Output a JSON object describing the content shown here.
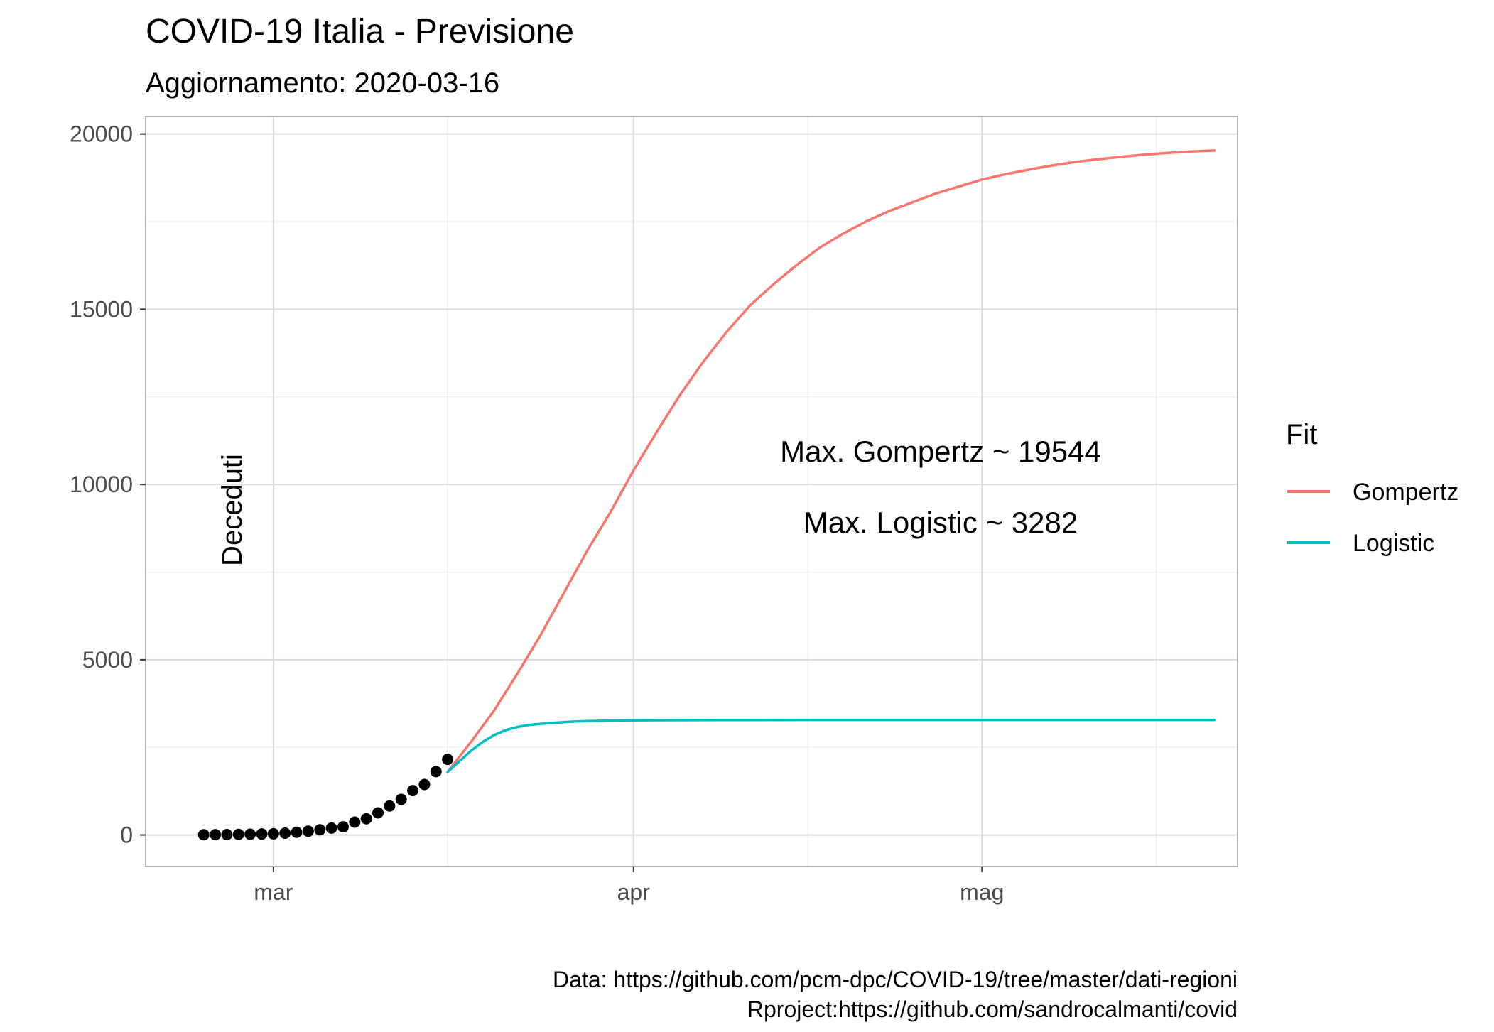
{
  "chart_data": {
    "type": "line",
    "title": "COVID-19 Italia - Previsione",
    "subtitle": "Aggiornamento: 2020-03-16",
    "ylabel": "Deceduti",
    "xlabel": "",
    "ylim": [
      -900,
      20500
    ],
    "xlim": [
      "2020-02-19",
      "2020-05-23"
    ],
    "x_ticks": [
      {
        "date": "2020-03-01",
        "label": "mar"
      },
      {
        "date": "2020-04-01",
        "label": "apr"
      },
      {
        "date": "2020-05-01",
        "label": "mag"
      }
    ],
    "x_minor_ticks": [
      "2020-03-16",
      "2020-04-16",
      "2020-05-16"
    ],
    "y_ticks": [
      0,
      5000,
      10000,
      15000,
      20000
    ],
    "y_minor_ticks": [
      2500,
      7500,
      12500,
      17500
    ],
    "grid": true,
    "legend": {
      "title": "Fit",
      "placement": "right"
    },
    "annotations": [
      "Max. Gompertz ~ 19544",
      "Max. Logistic ~ 3282"
    ],
    "caption": [
      "Data: https://github.com/pcm-dpc/COVID-19/tree/master/dati-regioni",
      "Rproject:https://github.com/sandrocalmanti/covid"
    ],
    "observed": {
      "x": [
        "2020-02-24",
        "2020-02-25",
        "2020-02-26",
        "2020-02-27",
        "2020-02-28",
        "2020-02-29",
        "2020-03-01",
        "2020-03-02",
        "2020-03-03",
        "2020-03-04",
        "2020-03-05",
        "2020-03-06",
        "2020-03-07",
        "2020-03-08",
        "2020-03-09",
        "2020-03-10",
        "2020-03-11",
        "2020-03-12",
        "2020-03-13",
        "2020-03-14",
        "2020-03-15",
        "2020-03-16"
      ],
      "y": [
        7,
        10,
        12,
        17,
        21,
        29,
        34,
        52,
        79,
        107,
        148,
        197,
        233,
        366,
        463,
        631,
        827,
        1016,
        1266,
        1441,
        1809,
        2158
      ]
    },
    "series": [
      {
        "name": "Gompertz",
        "color": "#F8766D",
        "x": [
          "2020-03-16",
          "2020-03-18",
          "2020-03-20",
          "2020-03-22",
          "2020-03-24",
          "2020-03-26",
          "2020-03-28",
          "2020-03-30",
          "2020-04-01",
          "2020-04-03",
          "2020-04-05",
          "2020-04-07",
          "2020-04-09",
          "2020-04-11",
          "2020-04-13",
          "2020-04-15",
          "2020-04-17",
          "2020-04-19",
          "2020-04-21",
          "2020-04-23",
          "2020-04-25",
          "2020-04-27",
          "2020-04-29",
          "2020-05-01",
          "2020-05-03",
          "2020-05-05",
          "2020-05-07",
          "2020-05-09",
          "2020-05-11",
          "2020-05-13",
          "2020-05-15",
          "2020-05-17",
          "2020-05-19",
          "2020-05-21"
        ],
        "y": [
          1800,
          2650,
          3550,
          4600,
          5700,
          6900,
          8100,
          9200,
          10400,
          11500,
          12550,
          13500,
          14350,
          15100,
          15700,
          16250,
          16750,
          17150,
          17500,
          17800,
          18050,
          18300,
          18500,
          18700,
          18850,
          18980,
          19100,
          19200,
          19280,
          19350,
          19410,
          19460,
          19500,
          19530
        ]
      },
      {
        "name": "Logistic",
        "color": "#00BFC4",
        "x": [
          "2020-03-16",
          "2020-03-17",
          "2020-03-18",
          "2020-03-19",
          "2020-03-20",
          "2020-03-21",
          "2020-03-22",
          "2020-03-23",
          "2020-03-25",
          "2020-03-27",
          "2020-03-30",
          "2020-04-03",
          "2020-04-10",
          "2020-04-20",
          "2020-05-01",
          "2020-05-10",
          "2020-05-21"
        ],
        "y": [
          1800,
          2100,
          2400,
          2650,
          2850,
          2990,
          3080,
          3140,
          3200,
          3240,
          3265,
          3275,
          3280,
          3282,
          3282,
          3282,
          3282
        ]
      }
    ]
  }
}
